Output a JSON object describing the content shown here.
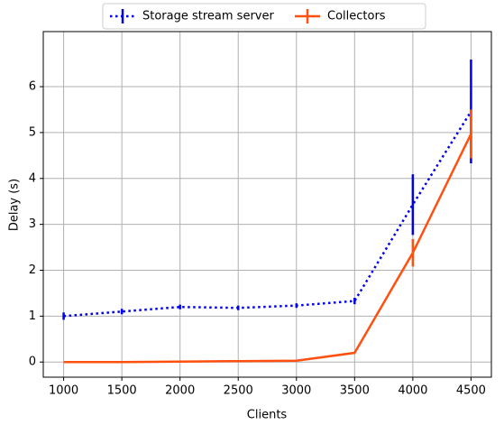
{
  "chart_data": {
    "type": "line",
    "x_label": "Clients",
    "y_label": "Delay (s)",
    "x": [
      1000,
      1500,
      2000,
      2500,
      3000,
      3500,
      4000,
      4500
    ],
    "series": [
      {
        "name": "Storage stream server",
        "color": "#0000ee",
        "dash": "dotted",
        "values": [
          1.0,
          1.1,
          1.2,
          1.18,
          1.23,
          1.33,
          3.43,
          5.46
        ],
        "errors": [
          0.08,
          0.06,
          0.05,
          0.05,
          0.05,
          0.07,
          0.66,
          1.13
        ]
      },
      {
        "name": "Collectors",
        "color": "#ff5010",
        "dash": "solid",
        "values": [
          0.0,
          0.0,
          0.01,
          0.02,
          0.03,
          0.2,
          2.38,
          4.97
        ],
        "errors": [
          0.0,
          0.0,
          0.0,
          0.0,
          0.0,
          0.0,
          0.3,
          0.53
        ]
      }
    ],
    "xlim": [
      825,
      4675
    ],
    "xticks": [
      1000,
      1500,
      2000,
      2500,
      3000,
      3500,
      4000,
      4500
    ],
    "ylim": [
      -0.33,
      7.2
    ],
    "yticks": [
      0,
      1,
      2,
      3,
      4,
      5,
      6
    ],
    "grid": true,
    "legend": "top-outside"
  }
}
